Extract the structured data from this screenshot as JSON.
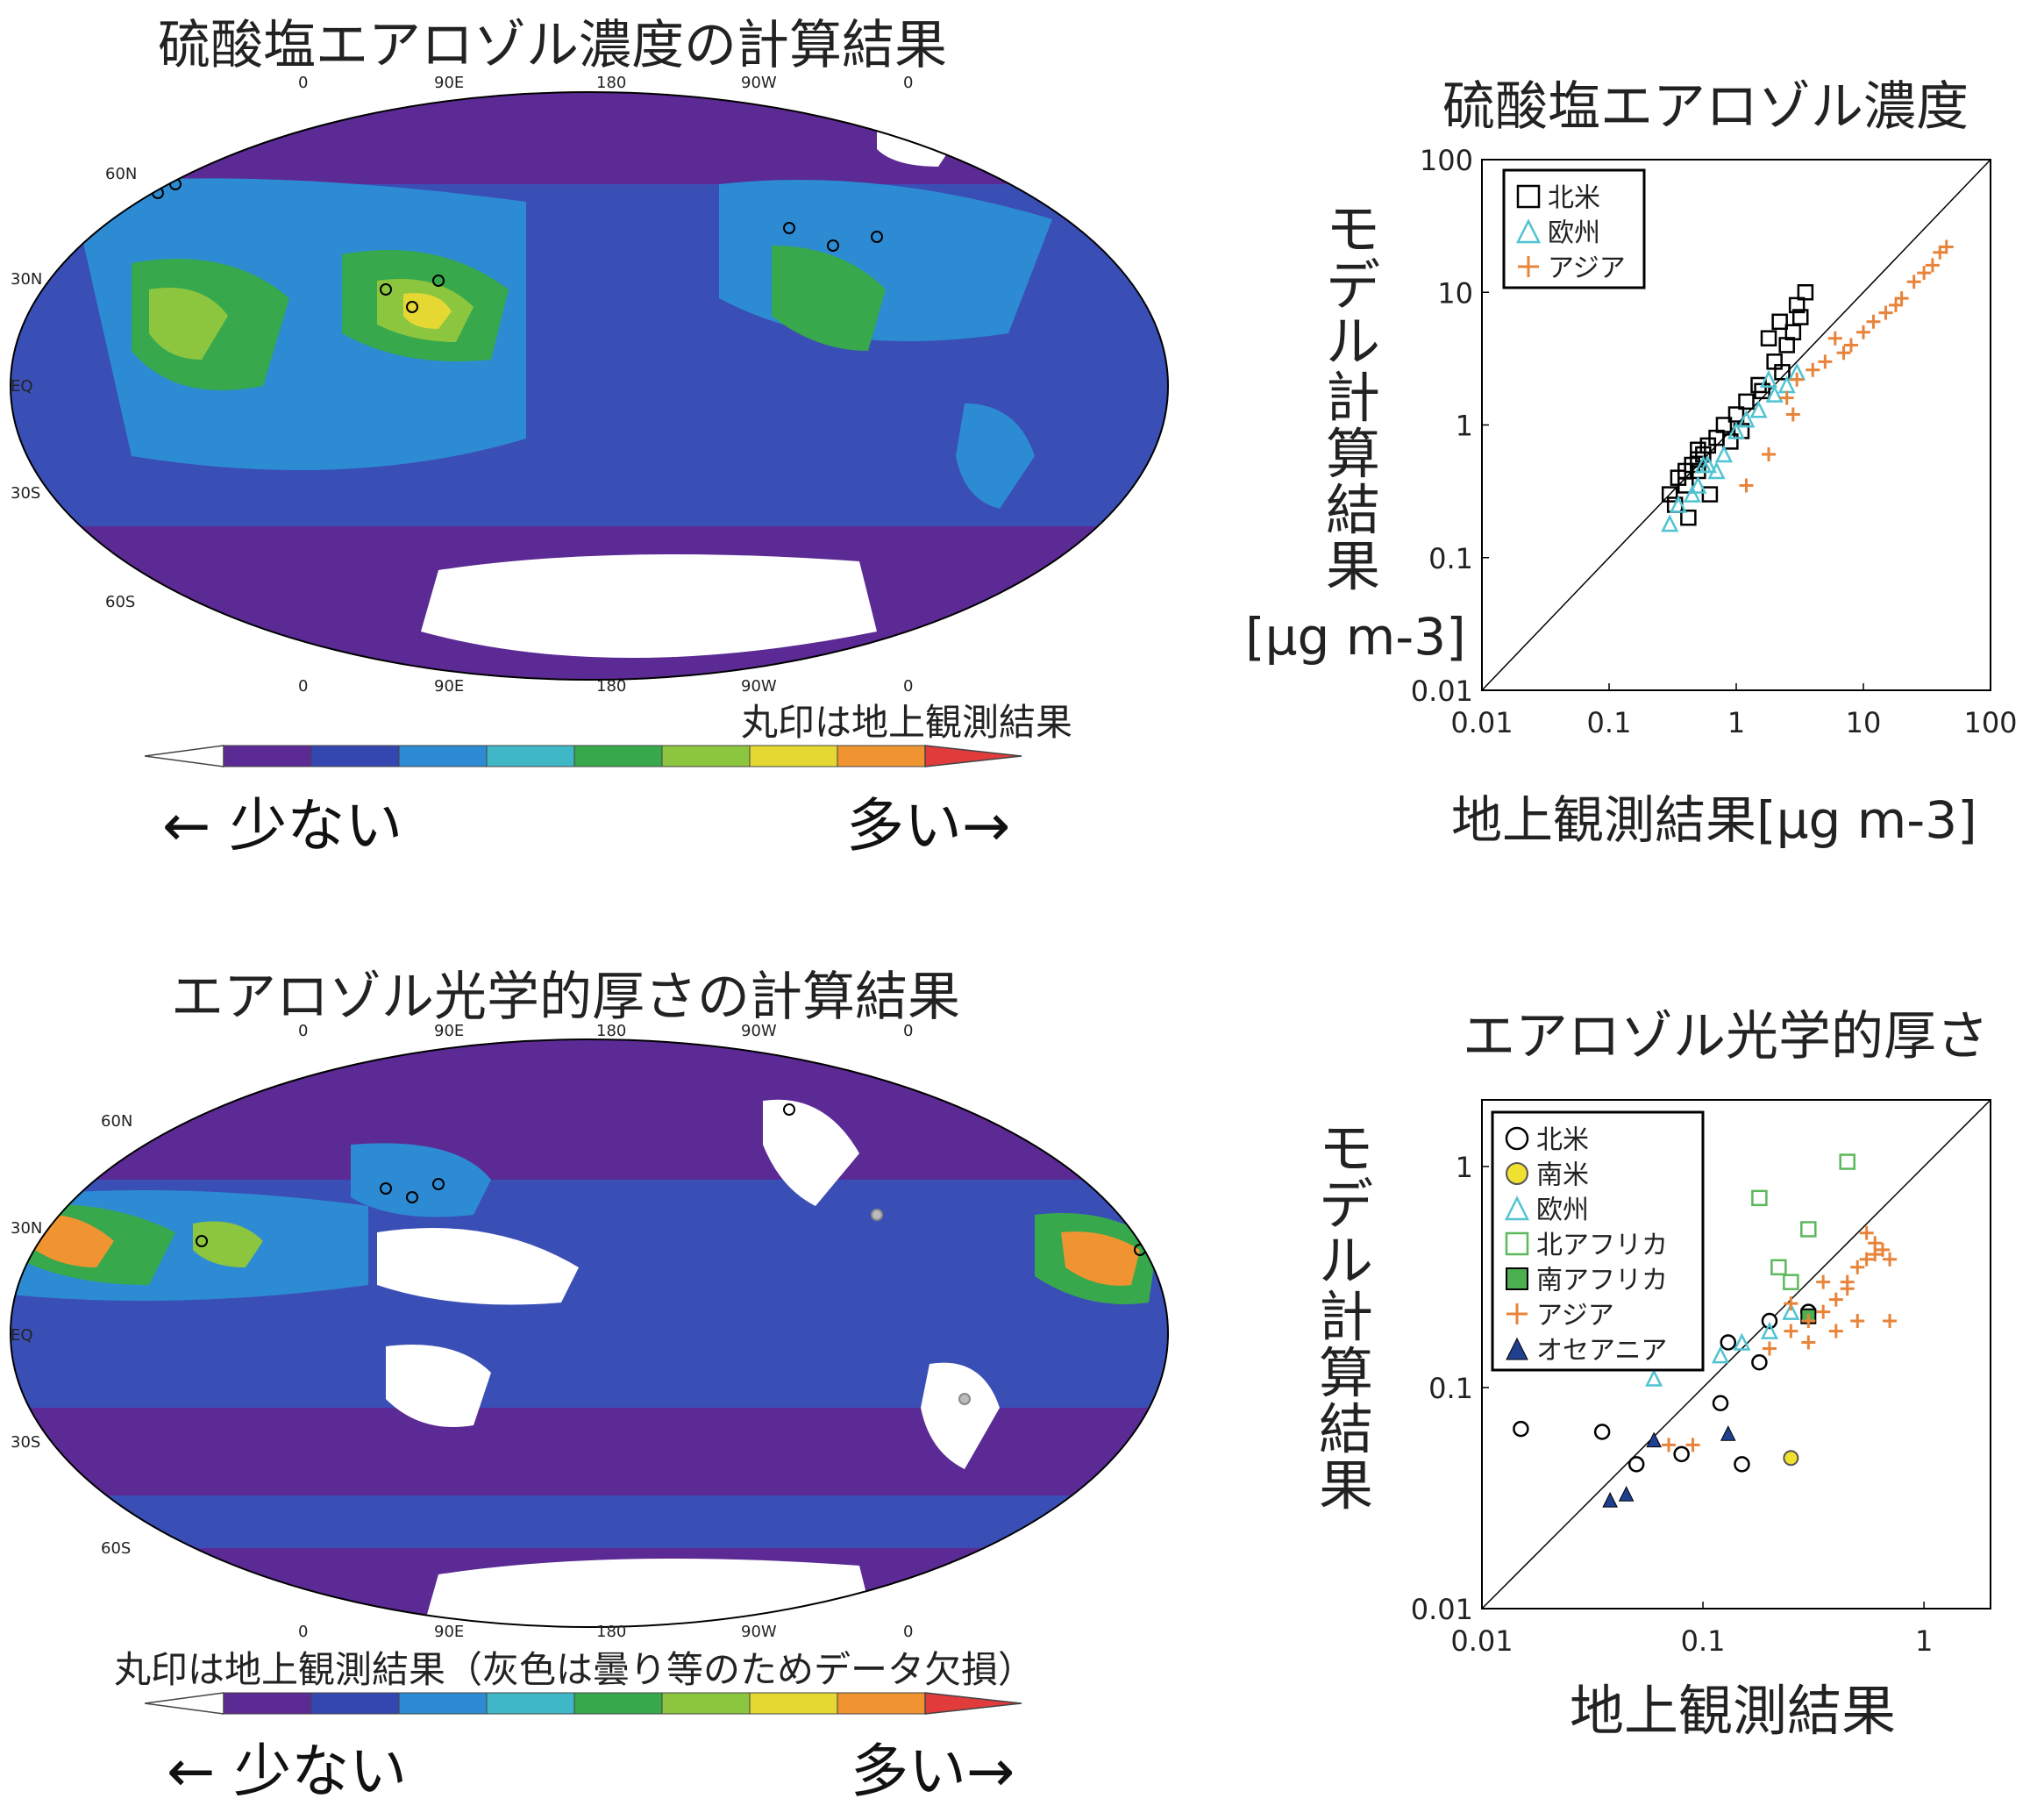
{
  "panels": {
    "map1": {
      "title": "硫酸塩エアロゾル濃度の計算結果",
      "note": "丸印は地上観測結果",
      "top_lon": [
        "0",
        "90E",
        "180",
        "90W",
        "0"
      ],
      "bottom_lon": [
        "0",
        "90E",
        "180",
        "90W",
        "0"
      ],
      "lat_labels": [
        "60N",
        "30N",
        "EQ",
        "30S",
        "60S"
      ],
      "less": "少ない",
      "more": "多い"
    },
    "map2": {
      "title": "エアロゾル光学的厚さの計算結果",
      "note": "丸印は地上観測結果（灰色は曇り等のためデータ欠損）",
      "top_lon": [
        "0",
        "90E",
        "180",
        "90W",
        "0"
      ],
      "bottom_lon": [
        "0",
        "90E",
        "180",
        "90W",
        "0"
      ],
      "lat_labels": [
        "60N",
        "30N",
        "EQ",
        "30S",
        "60S"
      ],
      "less": "少ない",
      "more": "多い"
    },
    "scatter1": {
      "ylabel_text": "モデル計算結果",
      "ylabel_unit": "[μg m-3]",
      "xlabel": "地上観測結果[μg m-3]"
    },
    "scatter2": {
      "ylabel_text": "モデル計算結果"
    }
  },
  "colorbar": [
    "#ffffff",
    "#5b2a94",
    "#3447b0",
    "#2d8bd3",
    "#3fb7c6",
    "#37a84c",
    "#8cc63f",
    "#e5d833",
    "#f09432",
    "#e23b3b"
  ],
  "chart_data": [
    {
      "type": "scatter",
      "title": "硫酸塩エアロゾル濃度",
      "xlabel": "地上観測結果[μg m-3]",
      "ylabel": "モデル計算結果 [μg m-3]",
      "xscale": "log",
      "yscale": "log",
      "xlim": [
        0.01,
        100
      ],
      "ylim": [
        0.01,
        100
      ],
      "xticks": [
        "0.01",
        "0.1",
        "1",
        "10",
        "100"
      ],
      "yticks": [
        "0.01",
        "0.1",
        "1",
        "10",
        "100"
      ],
      "legend_position": "top-left",
      "series": [
        {
          "name": "北米",
          "marker": "square-open",
          "color": "#000000",
          "x": [
            0.3,
            0.35,
            0.4,
            0.45,
            0.5,
            0.55,
            0.6,
            0.7,
            0.4,
            0.5,
            0.8,
            1.0,
            1.2,
            1.5,
            2.0,
            2.5,
            3.0,
            2.2,
            1.8,
            3.5,
            2.8,
            0.33,
            0.42,
            0.62,
            1.1,
            1.6,
            2.3,
            3.2,
            0.5,
            0.9
          ],
          "y": [
            0.3,
            0.4,
            0.45,
            0.5,
            0.55,
            0.6,
            0.7,
            0.8,
            0.35,
            0.45,
            1.0,
            1.2,
            1.5,
            2.0,
            3.0,
            4.0,
            8.0,
            6.0,
            4.5,
            10.0,
            5.0,
            0.25,
            0.2,
            0.3,
            0.9,
            1.8,
            2.5,
            6.5,
            0.65,
            0.75
          ]
        },
        {
          "name": "欧州",
          "marker": "triangle-open",
          "color": "#4fc3d1",
          "x": [
            0.3,
            0.35,
            0.5,
            0.6,
            0.8,
            1.0,
            1.2,
            1.5,
            2.0,
            2.5,
            0.45,
            0.7,
            1.8,
            3.0,
            0.55
          ],
          "y": [
            0.18,
            0.25,
            0.35,
            0.5,
            0.6,
            0.9,
            1.1,
            1.3,
            1.7,
            2.0,
            0.3,
            0.45,
            2.2,
            2.5,
            0.5
          ]
        },
        {
          "name": "アジア",
          "marker": "plus",
          "color": "#e8833a",
          "x": [
            5,
            8,
            12,
            15,
            20,
            25,
            30,
            35,
            40,
            3,
            4,
            6,
            2.5,
            1.8,
            7,
            10,
            45,
            18,
            1.2,
            2.8
          ],
          "y": [
            3,
            4,
            6,
            7,
            9,
            12,
            14,
            16,
            20,
            2.2,
            2.6,
            4.5,
            1.6,
            0.6,
            3.5,
            5,
            22,
            8,
            0.35,
            1.2
          ]
        }
      ]
    },
    {
      "type": "scatter",
      "title": "エアロゾル光学的厚さ",
      "xlabel": "地上観測結果",
      "ylabel": "モデル計算結果",
      "xscale": "log",
      "yscale": "log",
      "xlim": [
        0.01,
        2
      ],
      "ylim": [
        0.01,
        2
      ],
      "xticks": [
        "0.01",
        "0.1",
        "1"
      ],
      "yticks": [
        "0.01",
        "0.1",
        "1"
      ],
      "legend_position": "top-left",
      "series": [
        {
          "name": "北米",
          "marker": "circle-open",
          "color": "#000000",
          "x": [
            0.015,
            0.035,
            0.05,
            0.08,
            0.12,
            0.15,
            0.18,
            0.2,
            0.3,
            0.13
          ],
          "y": [
            0.065,
            0.063,
            0.045,
            0.05,
            0.085,
            0.045,
            0.13,
            0.2,
            0.22,
            0.16
          ]
        },
        {
          "name": "南米",
          "marker": "circle-filled",
          "color": "#f0e030",
          "x": [
            0.25
          ],
          "y": [
            0.048
          ]
        },
        {
          "name": "欧州",
          "marker": "triangle-open",
          "color": "#4fc3d1",
          "x": [
            0.06,
            0.12,
            0.15,
            0.2,
            0.25
          ],
          "y": [
            0.11,
            0.14,
            0.16,
            0.18,
            0.22
          ]
        },
        {
          "name": "北アフリカ",
          "marker": "square-open",
          "color": "#5cb85c",
          "x": [
            0.18,
            0.22,
            0.3,
            0.45,
            0.25
          ],
          "y": [
            0.72,
            0.35,
            0.52,
            1.05,
            0.3
          ]
        },
        {
          "name": "南アフリカ",
          "marker": "square-filled",
          "color": "#4caf50",
          "x": [
            0.3
          ],
          "y": [
            0.21
          ]
        },
        {
          "name": "アジア",
          "marker": "plus",
          "color": "#e8833a",
          "x": [
            0.07,
            0.09,
            0.2,
            0.25,
            0.3,
            0.35,
            0.4,
            0.45,
            0.5,
            0.55,
            0.6,
            0.65,
            0.7,
            0.35,
            0.4,
            0.5,
            0.6,
            0.3,
            0.25,
            0.45,
            0.7,
            0.55
          ],
          "y": [
            0.055,
            0.055,
            0.15,
            0.18,
            0.2,
            0.22,
            0.25,
            0.3,
            0.35,
            0.38,
            0.4,
            0.42,
            0.38,
            0.3,
            0.18,
            0.2,
            0.45,
            0.16,
            0.24,
            0.28,
            0.2,
            0.5
          ]
        },
        {
          "name": "オセアニア",
          "marker": "triangle-filled",
          "color": "#1f3f8f",
          "x": [
            0.038,
            0.045,
            0.06,
            0.13
          ],
          "y": [
            0.031,
            0.033,
            0.058,
            0.062
          ]
        }
      ]
    }
  ]
}
